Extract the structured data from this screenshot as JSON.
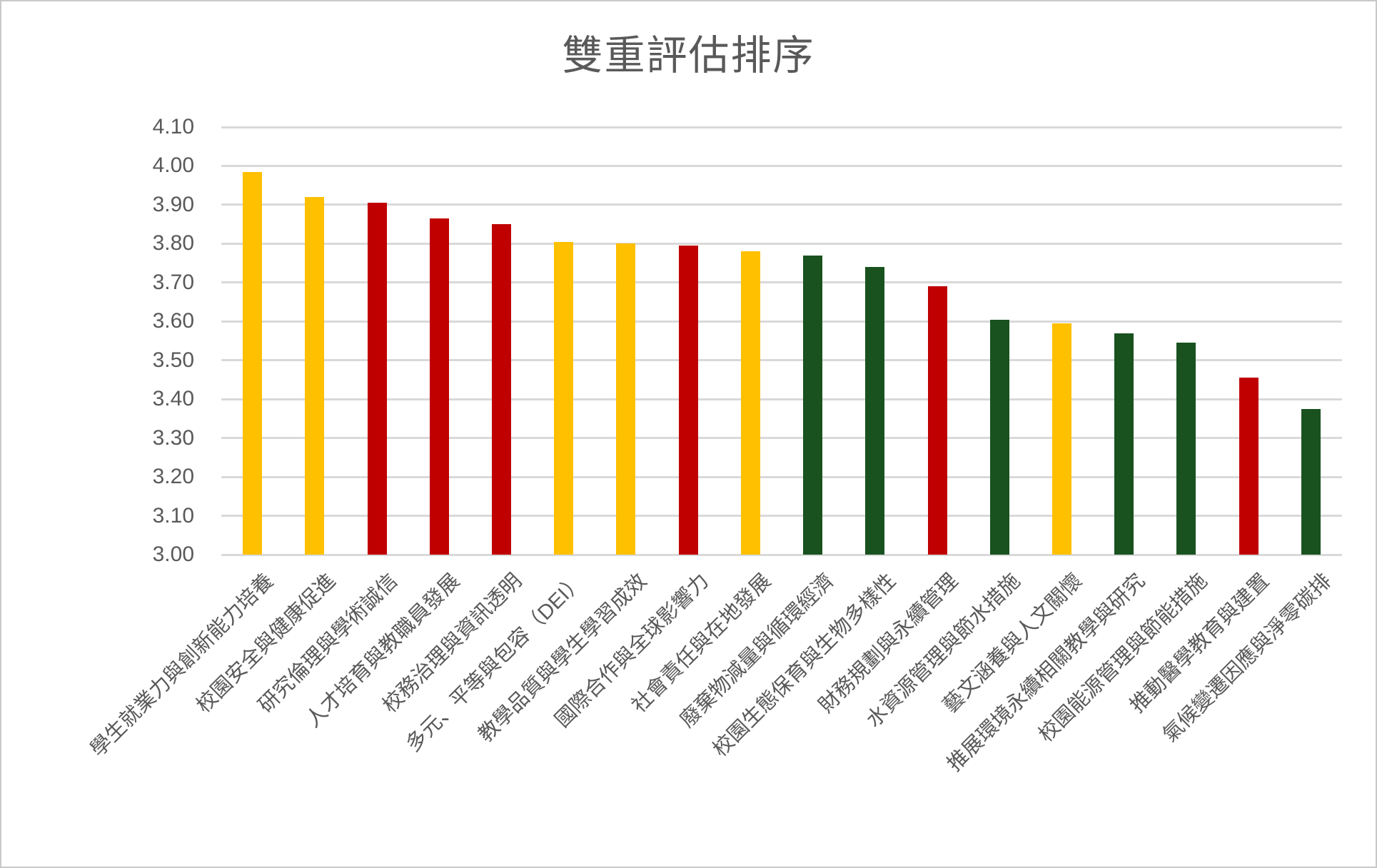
{
  "title": "雙重評估排序",
  "colors": {
    "background": "#FFFFFF",
    "border": "#C9C9C9",
    "gridline": "#D9D9D9",
    "axis_text": "#595959",
    "title_text": "#595959",
    "bar_gold": "#FFC000",
    "bar_dark_red": "#C00000",
    "bar_dark_green": "#19521F"
  },
  "chart_data": {
    "type": "bar",
    "title": "雙重評估排序",
    "xlabel": "",
    "ylabel": "",
    "ylim": [
      3.0,
      4.1
    ],
    "ytick_step": 0.1,
    "ytick_labels": [
      "4.10",
      "4.00",
      "3.90",
      "3.80",
      "3.70",
      "3.60",
      "3.50",
      "3.40",
      "3.30",
      "3.20",
      "3.10",
      "3.00"
    ],
    "grid": true,
    "legend": false,
    "categories": [
      "學生就業力與創新能力培養",
      "校園安全與健康促進",
      "研究倫理與學術誠信",
      "人才培育與教職員發展",
      "校務治理與資訊透明",
      "多元、平等與包容（DEI）",
      "教學品質與學生學習成效",
      "國際合作與全球影響力",
      "社會責任與在地發展",
      "廢棄物減量與循環經濟",
      "校園生態保育與生物多樣性",
      "財務規劃與永續管理",
      "水資源管理與節水措施",
      "藝文涵養與人文關懷",
      "推展環境永續相關教學與研究",
      "校園能源管理與節能措施",
      "推動醫學教育與建置",
      "氣候變遷因應與淨零碳排"
    ],
    "values": [
      3.985,
      3.92,
      3.905,
      3.865,
      3.85,
      3.805,
      3.8,
      3.795,
      3.78,
      3.77,
      3.74,
      3.69,
      3.605,
      3.595,
      3.57,
      3.545,
      3.455,
      3.375
    ],
    "bar_color_keys": [
      "gold",
      "gold",
      "red",
      "red",
      "red",
      "gold",
      "gold",
      "red",
      "gold",
      "green",
      "green",
      "red",
      "green",
      "gold",
      "green",
      "green",
      "red",
      "green"
    ],
    "palette": {
      "gold": "#FFC000",
      "red": "#C00000",
      "green": "#19521F"
    }
  }
}
